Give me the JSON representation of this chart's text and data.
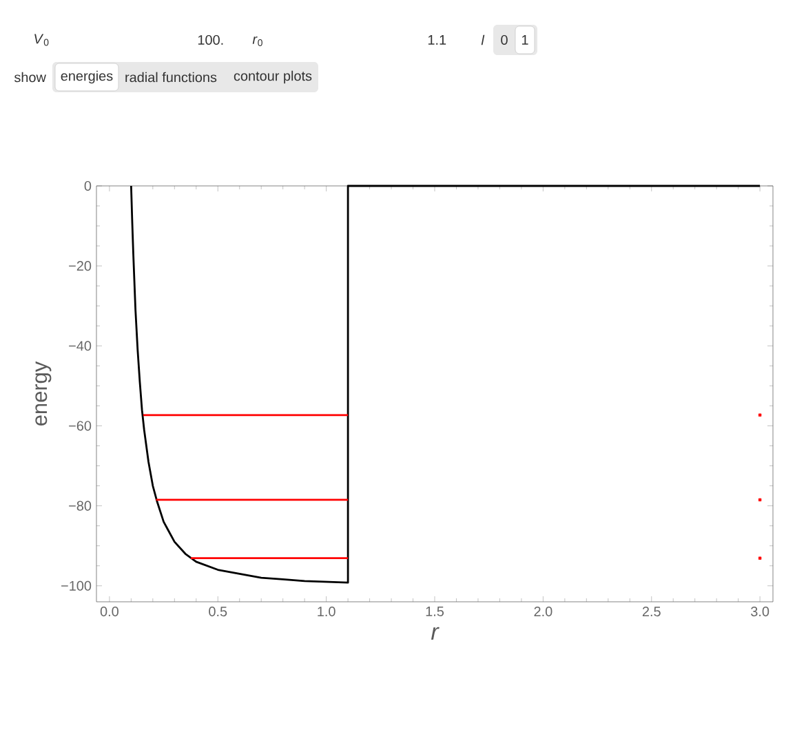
{
  "chart_data": {
    "type": "line",
    "xlabel": "r",
    "ylabel": "energy",
    "xlim": [
      -0.06,
      3.06
    ],
    "ylim": [
      -104,
      0
    ],
    "xticks": [
      {
        "value": 0,
        "label": "0.0"
      },
      0.5,
      {
        "value": 1,
        "label": "1.0"
      },
      1.5,
      {
        "value": 2,
        "label": "2.0"
      },
      2.5,
      {
        "value": 3,
        "label": "3.0"
      }
    ],
    "yticks": [
      {
        "value": -100,
        "label": "−100"
      },
      {
        "value": -80,
        "label": "−80"
      },
      {
        "value": -60,
        "label": "−60"
      },
      {
        "value": -40,
        "label": "−40"
      },
      {
        "value": -20,
        "label": "−20"
      },
      0
    ],
    "marker": "none",
    "line_style": "solid",
    "series": [
      {
        "color": "#000000",
        "x": [
          0.1,
          0.105,
          0.11,
          0.12,
          0.13,
          0.14,
          0.15,
          0.16,
          0.17,
          0.18,
          0.2,
          0.22,
          0.25,
          0.27,
          0.3,
          0.35,
          0.4,
          0.5,
          0.6,
          0.7,
          0.8,
          0.9,
          1.0,
          1.1,
          1.1,
          3.0
        ],
        "values": [
          0,
          -9,
          -17,
          -31,
          -41,
          -49,
          -56,
          -61,
          -65,
          -69,
          -75,
          -79,
          -84,
          -86,
          -89,
          -92,
          -94,
          -96,
          -97,
          -98,
          -98.4,
          -98.8,
          -99,
          -99.2,
          0,
          0
        ]
      },
      {
        "color": "#ff0000",
        "x": [
          0.156,
          1.1
        ],
        "values": [
          -57.3,
          -57.3
        ]
      },
      {
        "color": "#ff0000",
        "x": [
          0.215,
          1.1
        ],
        "values": [
          -78.5,
          -78.5
        ]
      },
      {
        "color": "#ff0000",
        "x": [
          0.375,
          1.1
        ],
        "values": [
          -93.1,
          -93.1
        ]
      },
      {
        "type": "scatter",
        "marker": "square",
        "color": "#ff0000",
        "x": [
          3.0,
          3.0,
          3.0
        ],
        "values": [
          -57.3,
          -78.5,
          -93.1
        ]
      }
    ],
    "annotations": [
      "*V*$_{0}$",
      "100.",
      "*r*$_{0}$",
      "1.1",
      "*l*",
      "0",
      "1",
      "show",
      "energies",
      "radial functions",
      "contour plots"
    ]
  }
}
